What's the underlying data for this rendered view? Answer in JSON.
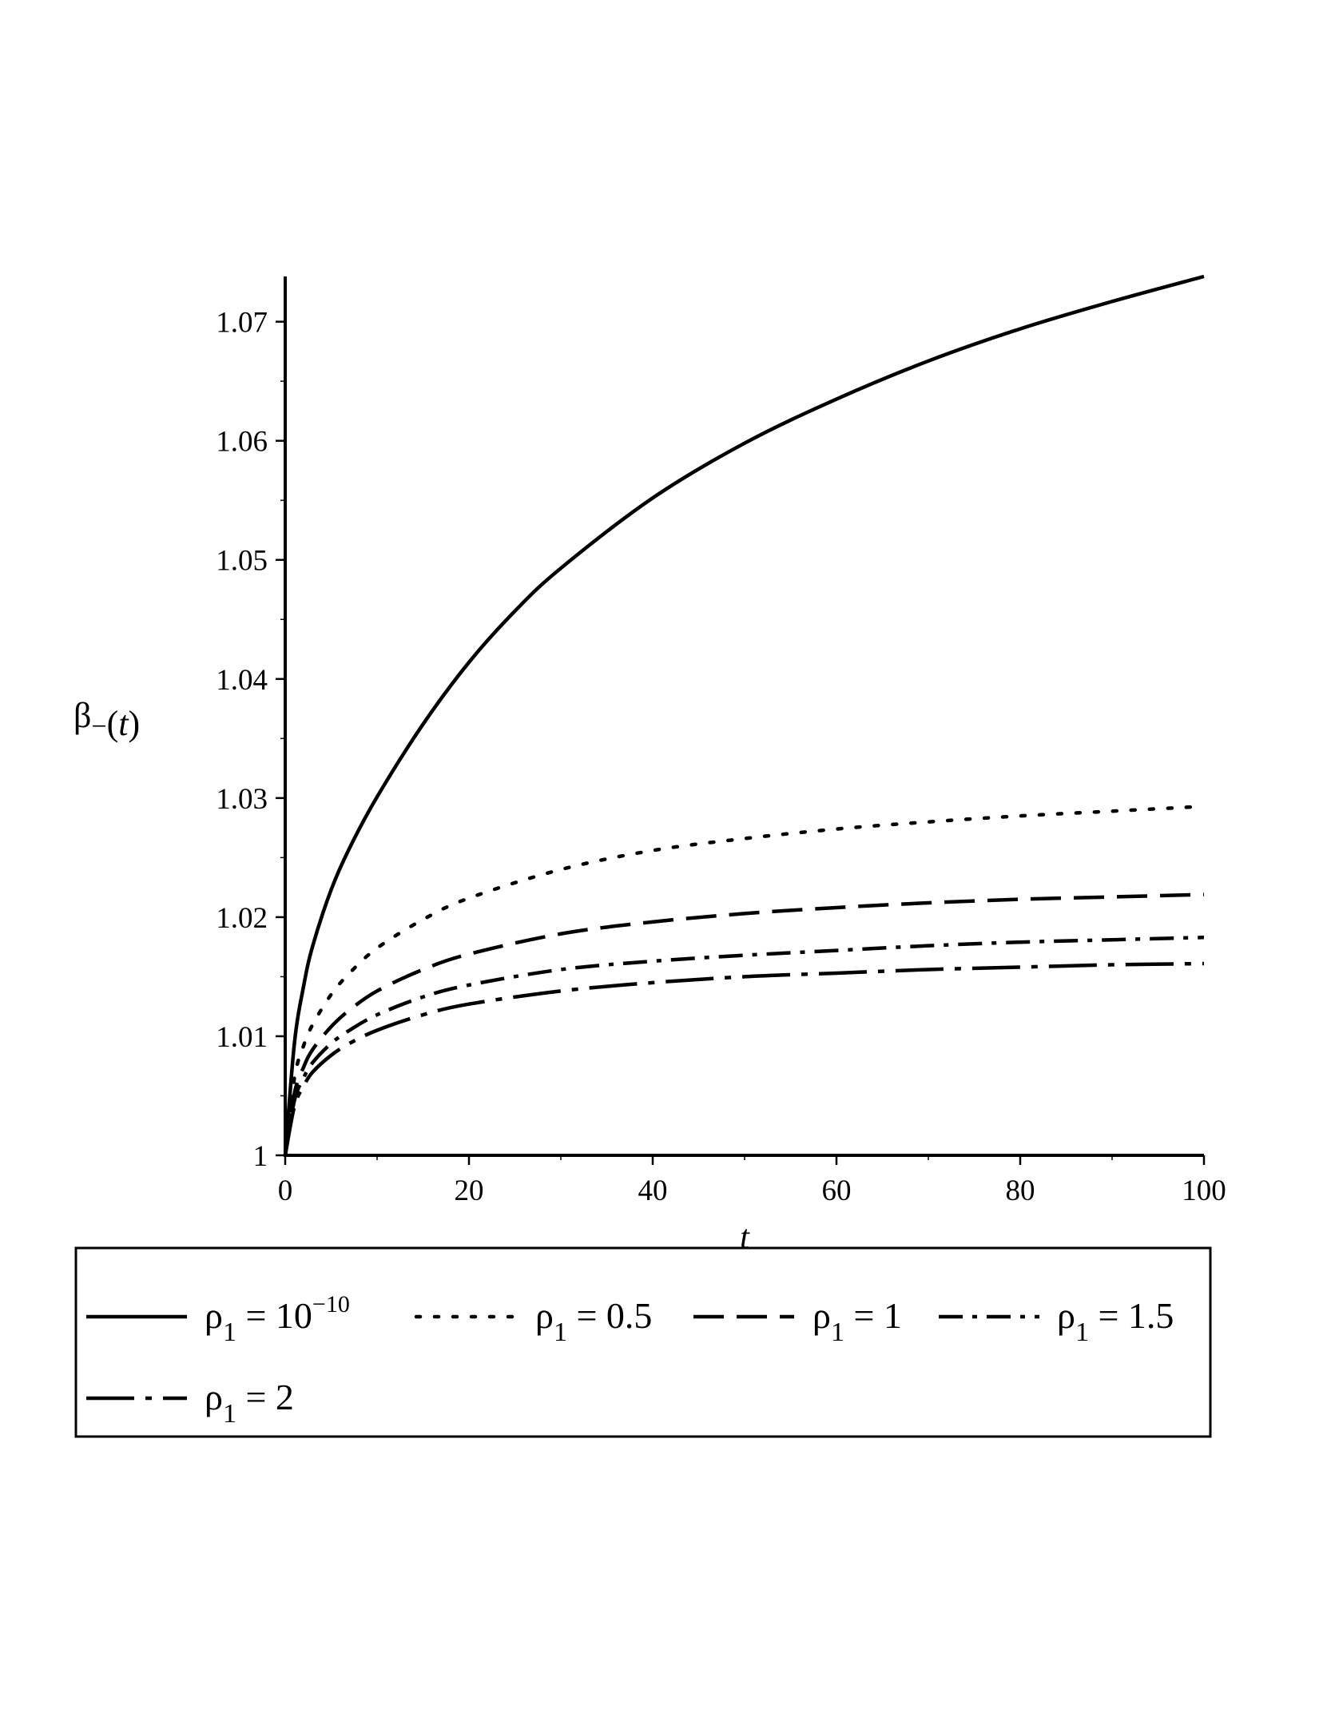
{
  "chart_data": {
    "type": "line",
    "xlabel": "t",
    "ylabel": {
      "base": "β",
      "sub": "−",
      "arg": "(t)"
    },
    "xlim": [
      0,
      100
    ],
    "ylim": [
      1.0,
      1.0738
    ],
    "xticks": [
      0,
      20,
      40,
      60,
      80,
      100
    ],
    "xtick_labels": [
      "0",
      "20",
      "40",
      "60",
      "80",
      "100"
    ],
    "yticks": [
      1.0,
      1.01,
      1.02,
      1.03,
      1.04,
      1.05,
      1.06,
      1.07
    ],
    "ytick_labels": [
      "1",
      "1.01",
      "1.02",
      "1.03",
      "1.04",
      "1.05",
      "1.06",
      "1.07"
    ],
    "grid": false,
    "legend_position": "bottom",
    "series": [
      {
        "name": "ρ1 = 10^-10",
        "legend": {
          "sym": "ρ",
          "sub": "1",
          "eq": " = 10",
          "sup": "−10"
        },
        "style": "solid",
        "x": [
          0,
          1,
          2,
          3,
          5,
          7,
          10,
          15,
          20,
          25,
          30,
          40,
          50,
          60,
          70,
          80,
          90,
          100
        ],
        "y": [
          1.0,
          1.0094,
          1.0142,
          1.0176,
          1.0223,
          1.0258,
          1.0301,
          1.0362,
          1.0414,
          1.0457,
          1.0493,
          1.0552,
          1.0598,
          1.0635,
          1.0667,
          1.0694,
          1.0717,
          1.0738
        ]
      },
      {
        "name": "ρ1 = 0.5",
        "legend": {
          "sym": "ρ",
          "sub": "1",
          "eq": " = 0.5",
          "sup": ""
        },
        "style": "dotted",
        "x": [
          0,
          1,
          2,
          3,
          5,
          7,
          10,
          15,
          20,
          30,
          40,
          50,
          60,
          70,
          80,
          90,
          100
        ],
        "y": [
          1.0,
          1.0065,
          1.0092,
          1.011,
          1.0135,
          1.0153,
          1.0174,
          1.0198,
          1.0216,
          1.024,
          1.0256,
          1.0266,
          1.0274,
          1.028,
          1.0285,
          1.0289,
          1.0293
        ]
      },
      {
        "name": "ρ1 = 1",
        "legend": {
          "sym": "ρ",
          "sub": "1",
          "eq": " = 1",
          "sup": ""
        },
        "style": "dashed",
        "x": [
          0,
          1,
          2,
          3,
          5,
          7,
          10,
          15,
          20,
          30,
          40,
          50,
          60,
          70,
          80,
          90,
          100
        ],
        "y": [
          1.0,
          1.0052,
          1.0074,
          1.0089,
          1.0108,
          1.0122,
          1.0138,
          1.0156,
          1.0169,
          1.0186,
          1.0196,
          1.0203,
          1.0208,
          1.0212,
          1.0215,
          1.0217,
          1.0219
        ]
      },
      {
        "name": "ρ1 = 1.5",
        "legend": {
          "sym": "ρ",
          "sub": "1",
          "eq": " = 1.5",
          "sup": ""
        },
        "style": "dashdot",
        "x": [
          0,
          1,
          2,
          3,
          5,
          7,
          10,
          15,
          20,
          30,
          40,
          50,
          60,
          70,
          80,
          90,
          100
        ],
        "y": [
          1.0,
          1.0046,
          1.0065,
          1.0078,
          1.0094,
          1.0105,
          1.0118,
          1.0133,
          1.0143,
          1.0156,
          1.0163,
          1.0168,
          1.0172,
          1.0176,
          1.0179,
          1.0181,
          1.0183
        ]
      },
      {
        "name": "ρ1 = 2",
        "legend": {
          "sym": "ρ",
          "sub": "1",
          "eq": " = 2",
          "sup": ""
        },
        "style": "longdash-dot",
        "x": [
          0,
          1,
          2,
          3,
          5,
          7,
          10,
          15,
          20,
          30,
          40,
          50,
          60,
          70,
          80,
          90,
          100
        ],
        "y": [
          1.0,
          1.0041,
          1.0058,
          1.007,
          1.0084,
          1.0094,
          1.0105,
          1.0118,
          1.0127,
          1.0138,
          1.0145,
          1.015,
          1.0153,
          1.0156,
          1.0158,
          1.016,
          1.0161
        ]
      }
    ]
  }
}
